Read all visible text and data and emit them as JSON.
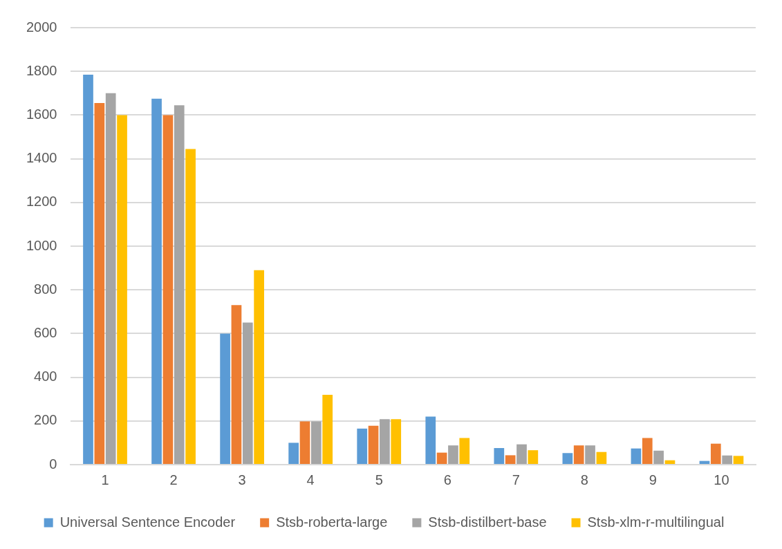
{
  "chart_data": {
    "type": "bar",
    "categories": [
      "1",
      "2",
      "3",
      "4",
      "5",
      "6",
      "7",
      "8",
      "9",
      "10"
    ],
    "series": [
      {
        "name": "Universal Sentence Encoder",
        "color": "#5b9bd5",
        "values": [
          1785,
          1675,
          600,
          100,
          165,
          220,
          76,
          53,
          74,
          17
        ]
      },
      {
        "name": "Stsb-roberta-large",
        "color": "#ed7d31",
        "values": [
          1655,
          1600,
          730,
          198,
          178,
          55,
          43,
          88,
          122,
          96
        ]
      },
      {
        "name": "Stsb-distilbert-base",
        "color": "#a5a5a5",
        "values": [
          1700,
          1645,
          650,
          198,
          208,
          88,
          93,
          88,
          64,
          42
        ]
      },
      {
        "name": "Stsb-xlm-r-multilingual",
        "color": "#ffc000",
        "values": [
          1600,
          1445,
          890,
          320,
          208,
          122,
          66,
          58,
          20,
          40
        ]
      }
    ],
    "ylim": [
      0,
      2000
    ],
    "yticks": [
      0,
      200,
      400,
      600,
      800,
      1000,
      1200,
      1400,
      1600,
      1800,
      2000
    ],
    "grid": "y",
    "legend": "bottom"
  }
}
